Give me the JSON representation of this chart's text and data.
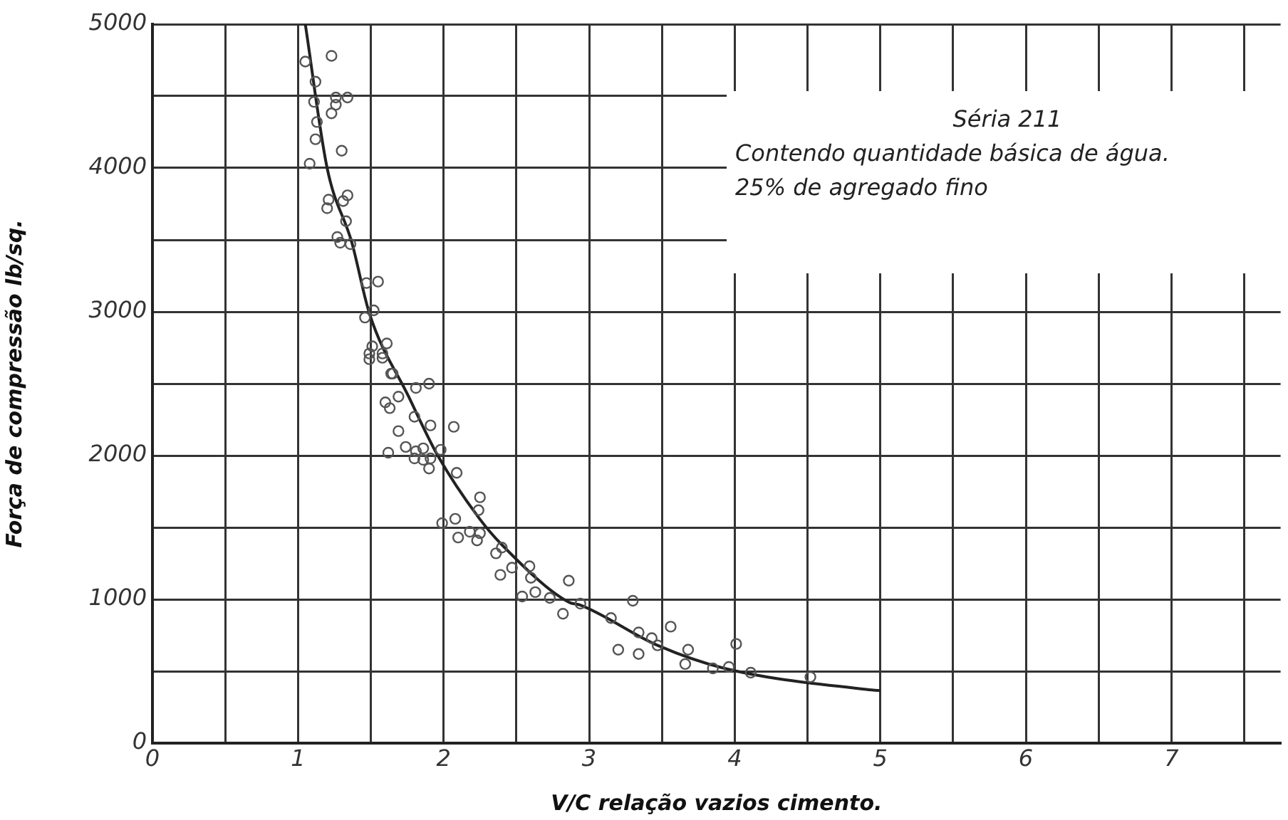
{
  "chart_data": {
    "type": "scatter",
    "xlabel": "V/C relação vazios cimento.",
    "ylabel": "Força de compressão lb/sq.",
    "annotations": [
      "Séria 211",
      "Contendo quantidade básica de água.",
      "25% de agregado fino"
    ],
    "xlim": [
      0,
      7.75
    ],
    "ylim": [
      0,
      5000
    ],
    "xticks": [
      0,
      {
        "value": 0.5,
        "label": null
      },
      1,
      {
        "value": 1.5,
        "label": null
      },
      2,
      {
        "value": 2.5,
        "label": null
      },
      3,
      {
        "value": 3.5,
        "label": null
      },
      4,
      {
        "value": 4.5,
        "label": null
      },
      5,
      {
        "value": 5.5,
        "label": null
      },
      6,
      {
        "value": 6.5,
        "label": null
      },
      7,
      {
        "value": 7.5,
        "label": null
      }
    ],
    "yticks": [
      0,
      {
        "value": 500,
        "label": null
      },
      1000,
      {
        "value": 1500,
        "label": null
      },
      2000,
      {
        "value": 2500,
        "label": null
      },
      3000,
      {
        "value": 3500,
        "label": null
      },
      4000,
      {
        "value": 4500,
        "label": null
      },
      5000
    ],
    "grid": true,
    "legend": false,
    "marker": "circle",
    "series": [
      {
        "color": "#555555",
        "x": [
          1.05,
          1.23,
          1.12,
          1.11,
          1.26,
          1.34,
          1.26,
          1.23,
          1.13,
          1.12,
          1.3,
          1.08,
          1.34,
          1.21,
          1.2,
          1.31,
          1.33,
          1.27,
          1.29,
          1.36,
          1.47,
          1.55,
          1.52,
          1.46,
          1.51,
          1.61,
          1.49,
          1.58,
          1.64,
          1.49,
          1.58,
          1.65,
          1.81,
          1.9,
          1.69,
          1.6,
          1.63,
          1.8,
          1.91,
          2.07,
          1.69,
          1.74,
          1.62,
          1.81,
          1.86,
          1.98,
          1.8,
          1.86,
          1.91,
          1.9,
          2.09,
          2.25,
          2.24,
          1.99,
          2.08,
          2.1,
          2.18,
          2.25,
          2.23,
          2.36,
          2.4,
          2.39,
          2.47,
          2.59,
          2.6,
          2.54,
          2.63,
          2.73,
          2.82,
          2.86,
          2.94,
          3.15,
          3.3,
          3.2,
          3.34,
          3.34,
          3.43,
          3.47,
          3.56,
          3.68,
          3.66,
          3.85,
          3.96,
          4.01,
          4.11,
          4.52
        ],
        "values": [
          4740,
          4780,
          4600,
          4460,
          4490,
          4490,
          4440,
          4380,
          4320,
          4200,
          4120,
          4030,
          3810,
          3780,
          3720,
          3770,
          3630,
          3520,
          3480,
          3470,
          3200,
          3210,
          3010,
          2960,
          2760,
          2780,
          2710,
          2710,
          2570,
          2670,
          2680,
          2570,
          2470,
          2500,
          2410,
          2370,
          2330,
          2270,
          2210,
          2200,
          2170,
          2060,
          2020,
          2030,
          2050,
          2040,
          1980,
          1970,
          1980,
          1910,
          1880,
          1710,
          1620,
          1530,
          1560,
          1430,
          1470,
          1460,
          1410,
          1320,
          1360,
          1170,
          1220,
          1230,
          1150,
          1020,
          1050,
          1010,
          900,
          1130,
          970,
          870,
          990,
          650,
          770,
          620,
          730,
          680,
          810,
          650,
          550,
          520,
          530,
          690,
          490,
          460
        ]
      },
      {
        "type": "line",
        "color": "#222222",
        "marker": "none",
        "x": [
          1.05,
          1.2,
          1.37,
          1.49,
          1.76,
          1.96,
          2.24,
          2.4,
          2.86,
          2.94,
          3.47,
          3.93,
          4.89,
          5.0
        ],
        "values": [
          5000,
          4000,
          3480,
          2990,
          2410,
          2000,
          1570,
          1380,
          980,
          960,
          680,
          520,
          375,
          365
        ]
      }
    ]
  }
}
